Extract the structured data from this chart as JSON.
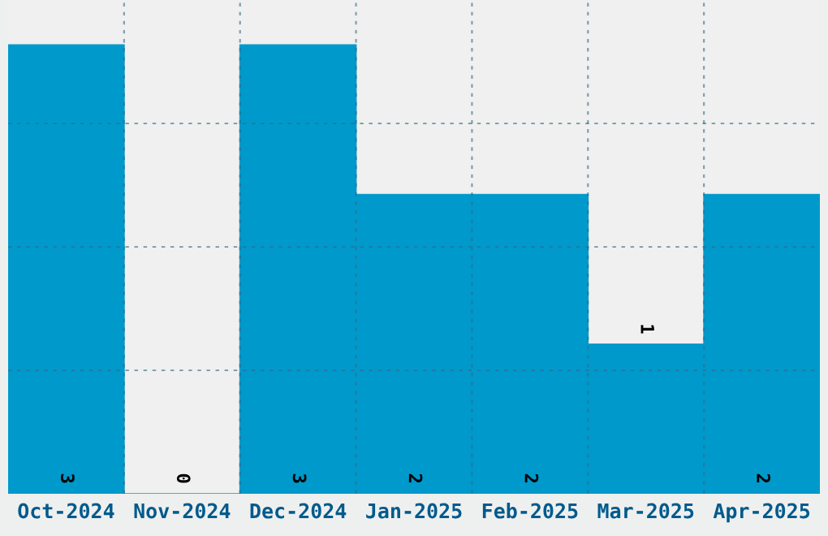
{
  "chart_data": {
    "type": "bar",
    "categories": [
      "Oct-2024",
      "Nov-2024",
      "Dec-2024",
      "Jan-2025",
      "Feb-2025",
      "Mar-2025",
      "Apr-2025"
    ],
    "values": [
      3,
      0,
      3,
      2,
      2,
      1,
      2
    ],
    "color": "#0099cc",
    "data_labels": true,
    "ylim": [
      0,
      3.3
    ],
    "yticks": [
      {
        "value": 0.825,
        "label": null
      },
      {
        "value": 1.65,
        "label": null
      },
      {
        "value": 2.475,
        "label": null
      }
    ],
    "tick_labels": "x",
    "grid": true
  }
}
